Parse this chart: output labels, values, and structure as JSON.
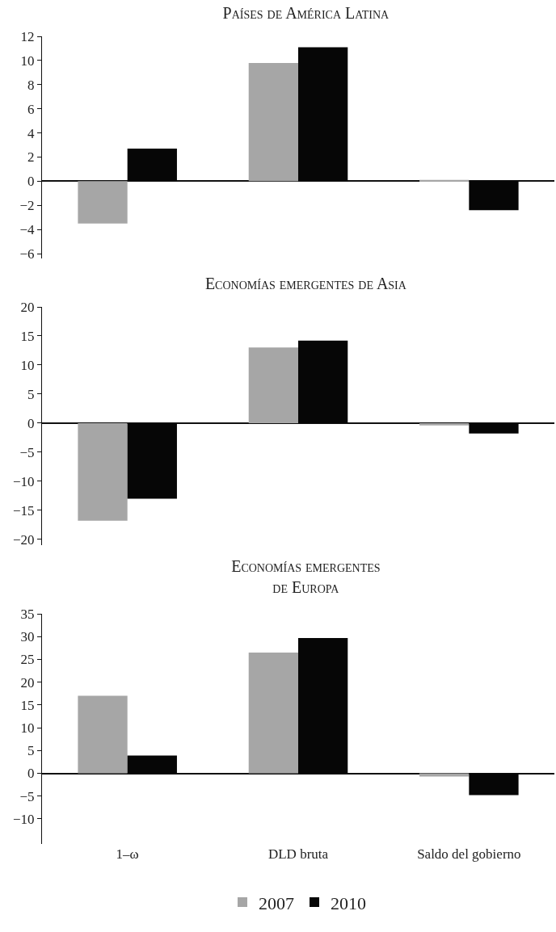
{
  "chart_data": [
    {
      "type": "bar",
      "title": "Países de América Latina",
      "categories": [
        null,
        null,
        null
      ],
      "tick_labels": "y",
      "ylim": [
        -6.4,
        12
      ],
      "yticks": [
        -6,
        -4,
        -2,
        0,
        2,
        4,
        6,
        8,
        10,
        12
      ],
      "legend": false,
      "series": [
        {
          "color": "#a6a6a6",
          "values": [
            -3.5,
            9.8,
            0.1
          ]
        },
        {
          "color": "#060606",
          "values": [
            2.7,
            11.1,
            -2.4
          ]
        }
      ]
    },
    {
      "type": "bar",
      "title": "Economías emergentes de Asia",
      "categories": [
        null,
        null,
        null
      ],
      "tick_labels": "y",
      "ylim": [
        -21,
        20
      ],
      "yticks": [
        -20,
        -15,
        -10,
        -5,
        0,
        5,
        10,
        15,
        20
      ],
      "legend": false,
      "series": [
        {
          "color": "#a6a6a6",
          "values": [
            -16.8,
            13,
            -0.4
          ]
        },
        {
          "color": "#060606",
          "values": [
            -13,
            14.2,
            -1.8
          ]
        }
      ]
    },
    {
      "type": "bar",
      "title": "Economías emergentes de Europa",
      "categories": [
        "1–ω",
        "DLD bruta",
        "Saldo del gobierno"
      ],
      "ylim": [
        -15.5,
        35
      ],
      "yticks": [
        -10,
        -5,
        0,
        5,
        10,
        15,
        20,
        25,
        30,
        35
      ],
      "legend": "bottom",
      "series": [
        {
          "name": "2007",
          "color": "#a6a6a6",
          "values": [
            17,
            26.5,
            -0.7
          ]
        },
        {
          "name": "2010",
          "color": "#060606",
          "values": [
            3.9,
            29.7,
            -4.8
          ]
        }
      ]
    }
  ]
}
